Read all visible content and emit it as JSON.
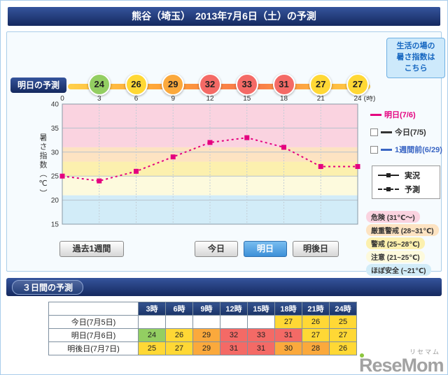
{
  "colors": {
    "navy_light": "#35549c",
    "navy_dark": "#15295f",
    "accent_blue_light": "#79bdf0",
    "accent_blue_dark": "#3d90d8",
    "line_pink": "#e4007f",
    "level_green": "#93ce62",
    "level_yellow": "#ffd835",
    "level_orange": "#fba93c",
    "level_red": "#f46a66"
  },
  "header": {
    "title": "熊谷（埼玉）　2013年7月6日（土）の予測"
  },
  "side_link": {
    "text": "生活の場の\n暑さ指数は\nこちら"
  },
  "tomorrow": {
    "label": "明日の予測",
    "badges": [
      {
        "hour": "3",
        "value": 24,
        "level": "green"
      },
      {
        "hour": "6",
        "value": 26,
        "level": "yellow"
      },
      {
        "hour": "9",
        "value": 29,
        "level": "orange"
      },
      {
        "hour": "12",
        "value": 32,
        "level": "red"
      },
      {
        "hour": "15",
        "value": 33,
        "level": "red"
      },
      {
        "hour": "18",
        "value": 31,
        "level": "red"
      },
      {
        "hour": "21",
        "value": 27,
        "level": "yellow"
      },
      {
        "hour": "24",
        "value": 27,
        "level": "yellow"
      }
    ]
  },
  "chart_data": {
    "type": "line",
    "ylabel": "暑さ指数（℃）",
    "xlabel_unit": "(時)",
    "xlim": [
      0,
      24
    ],
    "ylim": [
      15,
      40
    ],
    "x_ticks": [
      0,
      3,
      6,
      9,
      12,
      15,
      18,
      21,
      24
    ],
    "y_ticks": [
      40,
      35,
      30,
      25,
      20,
      15
    ],
    "series": [
      {
        "name": "明日(7/6)",
        "style": "dashed",
        "color": "#e4007f",
        "x": [
          0,
          3,
          6,
          9,
          12,
          15,
          18,
          21,
          24
        ],
        "values": [
          25,
          24,
          26,
          29,
          32,
          33,
          31,
          27,
          27
        ]
      }
    ],
    "bands": [
      {
        "label": "危険 (31℃～)",
        "from": 31,
        "to": 40,
        "color": "#fad3e0"
      },
      {
        "label": "厳重警戒 (28~31℃)",
        "from": 28,
        "to": 31,
        "color": "#fde3c2"
      },
      {
        "label": "警戒 (25~28℃)",
        "from": 25,
        "to": 28,
        "color": "#fcf0ae"
      },
      {
        "label": "注意 (21~25℃)",
        "from": 21,
        "to": 25,
        "color": "#fdfadd"
      },
      {
        "label": "ほぼ安全 (~21℃)",
        "from": 15,
        "to": 21,
        "color": "#d2ecf8"
      }
    ]
  },
  "legend": {
    "series": [
      {
        "label": "明日(7/6)",
        "color": "#e4007f",
        "has_checkbox": false
      },
      {
        "label": "今日(7/5)",
        "color": "#333333",
        "has_checkbox": true
      },
      {
        "label": "1週間前(6/29)",
        "color": "#3a66c4",
        "has_checkbox": true
      }
    ],
    "line_types": [
      {
        "label": "実況",
        "style": "solid"
      },
      {
        "label": "予測",
        "style": "dashed"
      }
    ]
  },
  "buttons": {
    "past_week": "過去1週間",
    "today": "今日",
    "tomorrow": "明日",
    "day_after": "明後日"
  },
  "three_day": {
    "title": "３日間の予測",
    "columns": [
      "3時",
      "6時",
      "9時",
      "12時",
      "15時",
      "18時",
      "21時",
      "24時"
    ],
    "rows": [
      {
        "label": "今日(7月5日)",
        "cells": [
          null,
          null,
          null,
          null,
          null,
          {
            "value": 27,
            "level": "yellow"
          },
          {
            "value": 26,
            "level": "yellow"
          },
          {
            "value": 25,
            "level": "yellow"
          }
        ]
      },
      {
        "label": "明日(7月6日)",
        "cells": [
          {
            "value": 24,
            "level": "green"
          },
          {
            "value": 26,
            "level": "yellow"
          },
          {
            "value": 29,
            "level": "orange"
          },
          {
            "value": 32,
            "level": "red"
          },
          {
            "value": 33,
            "level": "red"
          },
          {
            "value": 31,
            "level": "red"
          },
          {
            "value": 27,
            "level": "yellow"
          },
          {
            "value": 27,
            "level": "yellow"
          }
        ]
      },
      {
        "label": "明後日(7月7日)",
        "cells": [
          {
            "value": 25,
            "level": "yellow"
          },
          {
            "value": 27,
            "level": "yellow"
          },
          {
            "value": 29,
            "level": "orange"
          },
          {
            "value": 31,
            "level": "red"
          },
          {
            "value": 31,
            "level": "red"
          },
          {
            "value": 30,
            "level": "orange"
          },
          {
            "value": 28,
            "level": "orange"
          },
          {
            "value": 26,
            "level": "yellow"
          }
        ]
      }
    ]
  },
  "logo": {
    "text": "ReseMom",
    "kana": "リセマム"
  }
}
